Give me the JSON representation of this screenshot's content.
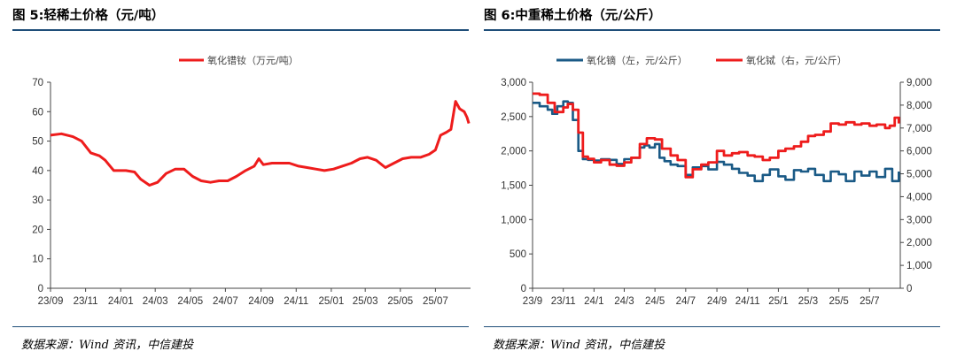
{
  "left_panel": {
    "title": "图 5:轻稀土价格（元/吨）",
    "source": "数据来源：Wind 资讯，中信建投"
  },
  "right_panel": {
    "title": "图 6:中重稀土价格（元/公斤）",
    "source": "数据来源：Wind 资讯，中信建投"
  },
  "colors": {
    "red": "#ee1c1c",
    "blue": "#1a5a86",
    "rule": "#1f4e79"
  },
  "chart_data": [
    {
      "type": "line",
      "title": "",
      "legend_position": "top-center",
      "ylim": [
        0,
        70
      ],
      "yticks": [
        0,
        10,
        20,
        30,
        40,
        50,
        60,
        70
      ],
      "xlim": [
        "2023-09-01",
        "2025-08-31"
      ],
      "xticks": [
        "23/09",
        "23/11",
        "24/01",
        "24/03",
        "24/05",
        "24/07",
        "24/09",
        "24/11",
        "25/01",
        "25/03",
        "25/05",
        "25/07"
      ],
      "series": [
        {
          "name": "氧化镨钕（万元/吨）",
          "color": "#ee1c1c",
          "x": [
            "2023-09-01",
            "2023-09-20",
            "2023-10-10",
            "2023-10-25",
            "2023-11-10",
            "2023-11-25",
            "2023-12-05",
            "2023-12-20",
            "2024-01-10",
            "2024-01-25",
            "2024-02-05",
            "2024-02-20",
            "2024-03-05",
            "2024-03-20",
            "2024-04-05",
            "2024-04-20",
            "2024-05-05",
            "2024-05-20",
            "2024-06-05",
            "2024-06-20",
            "2024-07-05",
            "2024-07-20",
            "2024-08-05",
            "2024-08-20",
            "2024-08-28",
            "2024-09-05",
            "2024-09-20",
            "2024-10-05",
            "2024-10-20",
            "2024-11-05",
            "2024-11-20",
            "2024-12-05",
            "2024-12-20",
            "2025-01-05",
            "2025-01-20",
            "2025-02-05",
            "2025-02-20",
            "2025-03-05",
            "2025-03-20",
            "2025-04-05",
            "2025-04-20",
            "2025-05-05",
            "2025-05-20",
            "2025-06-05",
            "2025-06-20",
            "2025-07-01",
            "2025-07-10",
            "2025-07-20",
            "2025-07-28",
            "2025-08-05",
            "2025-08-12",
            "2025-08-20",
            "2025-08-25",
            "2025-08-28"
          ],
          "y": [
            52.0,
            52.5,
            51.5,
            50.0,
            46.0,
            45.0,
            43.5,
            40.0,
            40.0,
            39.5,
            37.0,
            35.0,
            36.0,
            39.0,
            40.5,
            40.5,
            38.0,
            36.5,
            36.0,
            36.5,
            36.5,
            38.0,
            40.0,
            41.5,
            44.0,
            42.0,
            42.5,
            42.5,
            42.5,
            41.5,
            41.0,
            40.5,
            40.0,
            40.5,
            41.5,
            42.5,
            44.0,
            44.5,
            43.5,
            41.0,
            42.5,
            44.0,
            44.5,
            44.5,
            45.5,
            47.0,
            52.0,
            53.0,
            54.0,
            63.5,
            61.0,
            60.0,
            58.0,
            56.0
          ]
        }
      ]
    },
    {
      "type": "line",
      "title": "",
      "legend_position": "top-center",
      "ylim_left": [
        0,
        3000
      ],
      "yticks_left": [
        "0",
        "500",
        "1,000",
        "1,500",
        "2,000",
        "2,500",
        "3,000"
      ],
      "ylim_right": [
        0,
        9000
      ],
      "yticks_right": [
        "0",
        "1,000",
        "2,000",
        "3,000",
        "4,000",
        "5,000",
        "6,000",
        "7,000",
        "8,000",
        "9,000"
      ],
      "xlim": [
        "2023-09-01",
        "2025-08-31"
      ],
      "xticks": [
        "23/9",
        "23/11",
        "24/1",
        "24/3",
        "24/5",
        "24/7",
        "24/9",
        "24/11",
        "25/1",
        "25/3",
        "25/5",
        "25/7"
      ],
      "series": [
        {
          "name": "氧化镝（左，元/公斤）",
          "axis": "left",
          "color": "#1a5a86",
          "x": [
            "2023-09-01",
            "2023-09-15",
            "2023-10-01",
            "2023-10-10",
            "2023-10-20",
            "2023-11-01",
            "2023-11-10",
            "2023-11-20",
            "2023-12-01",
            "2023-12-10",
            "2023-12-20",
            "2024-01-01",
            "2024-01-15",
            "2024-02-01",
            "2024-02-15",
            "2024-03-01",
            "2024-03-15",
            "2024-04-01",
            "2024-04-10",
            "2024-04-20",
            "2024-05-01",
            "2024-05-10",
            "2024-05-20",
            "2024-06-01",
            "2024-06-15",
            "2024-07-01",
            "2024-07-15",
            "2024-08-01",
            "2024-08-15",
            "2024-09-01",
            "2024-09-15",
            "2024-10-01",
            "2024-10-15",
            "2024-11-01",
            "2024-11-15",
            "2024-12-01",
            "2024-12-15",
            "2025-01-01",
            "2025-01-15",
            "2025-02-01",
            "2025-02-15",
            "2025-03-01",
            "2025-03-15",
            "2025-04-01",
            "2025-04-15",
            "2025-05-01",
            "2025-05-15",
            "2025-06-01",
            "2025-06-15",
            "2025-07-01",
            "2025-07-15",
            "2025-08-01",
            "2025-08-15",
            "2025-08-28"
          ],
          "y": [
            2700,
            2650,
            2600,
            2540,
            2650,
            2720,
            2700,
            2450,
            2000,
            1880,
            1870,
            1860,
            1880,
            1870,
            1810,
            1880,
            1900,
            2050,
            2080,
            2050,
            2100,
            1900,
            1850,
            1800,
            1780,
            1650,
            1760,
            1780,
            1730,
            1840,
            1800,
            1740,
            1680,
            1640,
            1560,
            1650,
            1730,
            1630,
            1580,
            1720,
            1700,
            1740,
            1650,
            1560,
            1700,
            1660,
            1560,
            1700,
            1640,
            1700,
            1620,
            1740,
            1560,
            1700
          ]
        },
        {
          "name": "氧化铽（右，元/公斤）",
          "axis": "right",
          "color": "#ee1c1c",
          "x": [
            "2023-09-01",
            "2023-09-15",
            "2023-10-01",
            "2023-10-15",
            "2023-11-01",
            "2023-11-10",
            "2023-11-20",
            "2023-12-01",
            "2023-12-10",
            "2023-12-20",
            "2024-01-01",
            "2024-01-15",
            "2024-02-01",
            "2024-02-15",
            "2024-03-01",
            "2024-03-15",
            "2024-04-01",
            "2024-04-15",
            "2024-05-01",
            "2024-05-15",
            "2024-06-01",
            "2024-06-15",
            "2024-07-01",
            "2024-07-15",
            "2024-08-01",
            "2024-08-15",
            "2024-09-01",
            "2024-09-15",
            "2024-10-01",
            "2024-10-15",
            "2024-11-01",
            "2024-11-15",
            "2024-12-01",
            "2024-12-15",
            "2025-01-01",
            "2025-01-15",
            "2025-02-01",
            "2025-02-15",
            "2025-03-01",
            "2025-03-15",
            "2025-04-01",
            "2025-04-15",
            "2025-05-01",
            "2025-05-15",
            "2025-06-01",
            "2025-06-15",
            "2025-07-01",
            "2025-07-15",
            "2025-08-01",
            "2025-08-10",
            "2025-08-20",
            "2025-08-28"
          ],
          "y": [
            8500,
            8450,
            8100,
            7700,
            7900,
            8050,
            7800,
            6800,
            5750,
            5650,
            5500,
            5600,
            5400,
            5350,
            5500,
            5700,
            6300,
            6550,
            6500,
            6100,
            5800,
            5600,
            4850,
            5200,
            5400,
            5500,
            6000,
            5800,
            5900,
            5950,
            5800,
            5750,
            5600,
            5700,
            6000,
            6100,
            6200,
            6400,
            6650,
            6700,
            6850,
            7200,
            7150,
            7250,
            7150,
            7200,
            7100,
            7150,
            7000,
            7100,
            7450,
            7200
          ]
        }
      ]
    }
  ]
}
